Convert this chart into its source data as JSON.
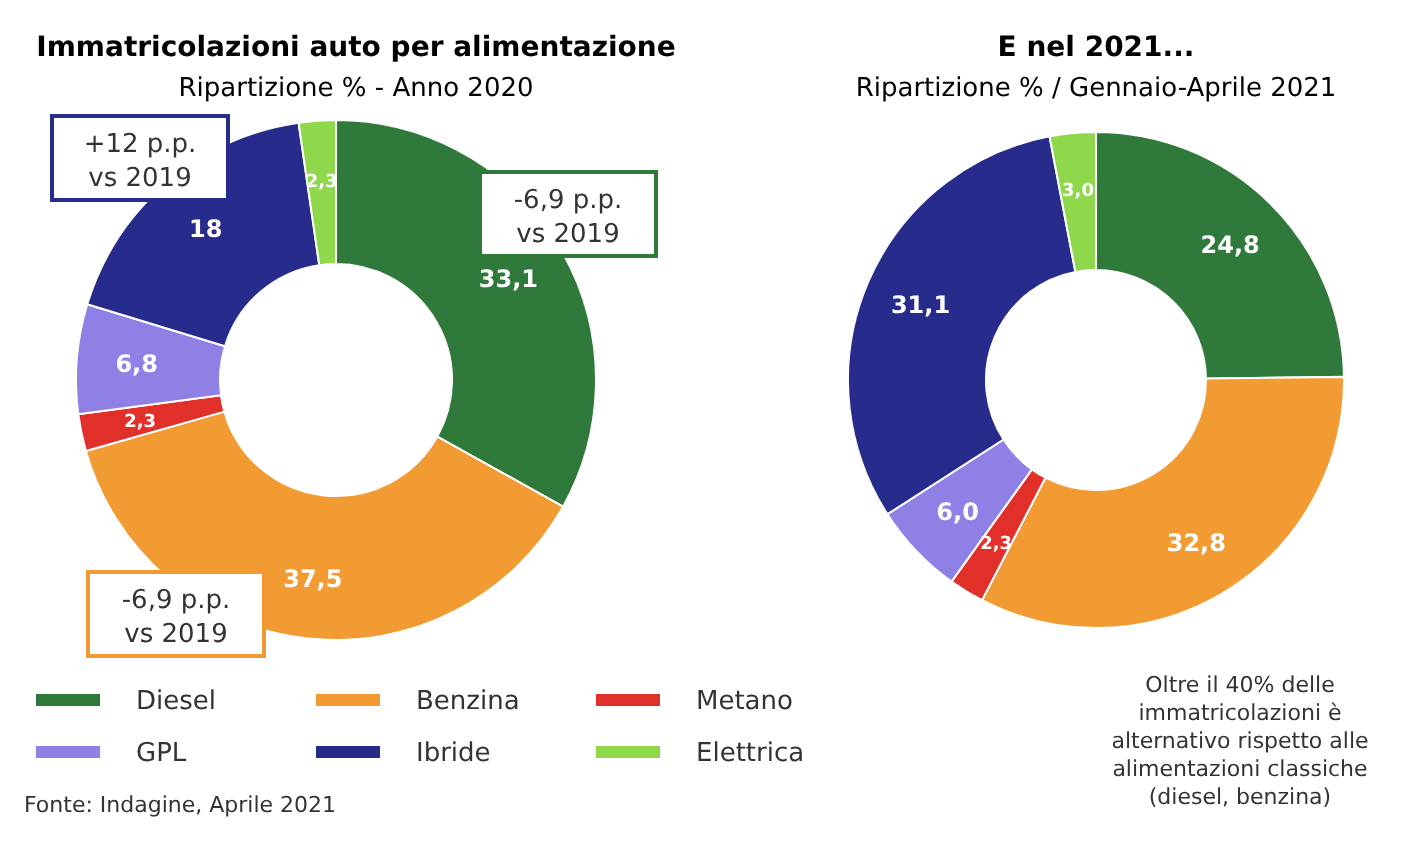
{
  "chart_data": [
    {
      "type": "donut",
      "title": "Immatricolazioni auto per alimentazione",
      "subtitle": "Ripartizione % - Anno 2020",
      "categories": [
        "Diesel",
        "Benzina",
        "Metano",
        "GPL",
        "Ibride",
        "Elettrica"
      ],
      "values": [
        33.1,
        37.5,
        2.3,
        6.8,
        18,
        2.3
      ],
      "colors": [
        "#2f7a3a",
        "#f39b33",
        "#e1302a",
        "#8f80e6",
        "#272b8c",
        "#8fd84b"
      ],
      "value_labels": [
        "33,1",
        "37,5",
        "2,3",
        "6,8",
        "18",
        "2,3"
      ],
      "legend": "bottom",
      "annotations": [
        {
          "text": "+12 p.p.\nvs 2019",
          "x": "Ibride"
        },
        {
          "text": "-6,9 p.p.\nvs 2019",
          "x": "Diesel"
        },
        {
          "text": "-6,9 p.p.\nvs 2019",
          "x": "Benzina"
        },
        "Fonte: Indagine, Aprile 2021"
      ]
    },
    {
      "type": "donut",
      "title": "E nel 2021...",
      "subtitle": "Ripartizione % / Gennaio-Aprile 2021",
      "values": [
        24.8,
        32.8,
        2.3,
        6.0,
        31.1,
        3.0
      ],
      "colors": [
        "#2f7a3a",
        "#f39b33",
        "#e1302a",
        "#8f80e6",
        "#272b8c",
        "#8fd84b"
      ],
      "value_labels": [
        "24,8",
        "32,8",
        "2,3",
        "6,0",
        "31,1",
        "3,0"
      ],
      "legend": false,
      "annotations": [
        "Oltre il 40% delle\nimmatricolazioni è\nalternativo rispetto alle\nalimentazioni classiche\n(diesel, benzina)"
      ]
    }
  ]
}
